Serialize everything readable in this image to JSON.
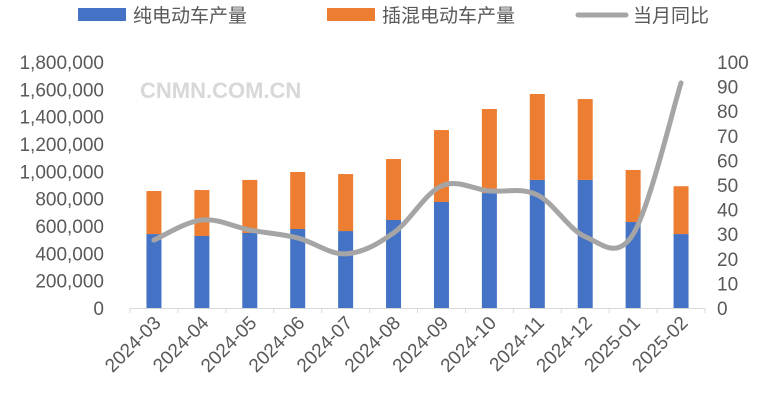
{
  "chart_data": {
    "type": "bar",
    "stacked": true,
    "categories": [
      "2024-03",
      "2024-04",
      "2024-05",
      "2024-06",
      "2024-07",
      "2024-08",
      "2024-09",
      "2024-10",
      "2024-11",
      "2024-12",
      "2025-01",
      "2025-02"
    ],
    "series": [
      {
        "name": "纯电动车产量",
        "type": "bar",
        "axis": "left",
        "color": "#4472C4",
        "values": [
          541000,
          527000,
          549000,
          578000,
          563000,
          644000,
          776000,
          841000,
          937000,
          937000,
          629000,
          541000
        ]
      },
      {
        "name": "插混电动车产量",
        "type": "bar",
        "axis": "left",
        "color": "#ED7D31",
        "values": [
          315000,
          336000,
          388000,
          417000,
          417000,
          446000,
          526000,
          615000,
          629000,
          592000,
          381000,
          350000
        ]
      },
      {
        "name": "当月同比",
        "type": "line",
        "smooth": true,
        "axis": "right",
        "color": "#A5A5A5",
        "values": [
          27.6,
          35.8,
          31.7,
          28.5,
          22,
          30.5,
          49.6,
          47.6,
          46,
          29,
          30,
          91.5
        ]
      }
    ],
    "ylim": [
      0,
      1800000
    ],
    "y_ticks": [
      "0",
      "200,000",
      "400,000",
      "600,000",
      "800,000",
      "1,000,000",
      "1,200,000",
      "1,400,000",
      "1,600,000",
      "1,800,000"
    ],
    "y2lim": [
      0,
      100
    ],
    "y2_ticks": [
      "0",
      "10",
      "20",
      "30",
      "40",
      "50",
      "60",
      "70",
      "80",
      "90",
      "100"
    ],
    "grid": false,
    "legend": "top",
    "watermark": "CNMN.COM.CN"
  }
}
